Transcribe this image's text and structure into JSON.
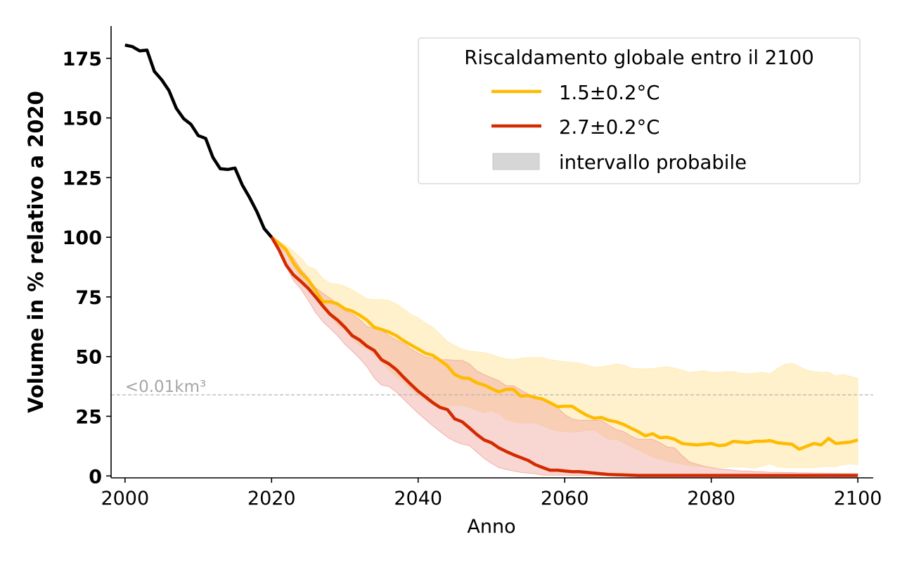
{
  "chart_data": {
    "type": "line",
    "title": "",
    "xlabel": "Anno",
    "ylabel": "Volume in % relativo a 2020",
    "xlim": [
      1998.1,
      2102.1
    ],
    "ylim": [
      -0.8,
      188.5
    ],
    "grid": false,
    "xticks": [
      2000,
      2020,
      2040,
      2060,
      2080,
      2100
    ],
    "xtick_labels": [
      "2000",
      "2020",
      "2040",
      "2060",
      "2080",
      "2100"
    ],
    "yticks": [
      0,
      25,
      50,
      75,
      100,
      125,
      150,
      175
    ],
    "ytick_labels": [
      "0",
      "25",
      "50",
      "75",
      "100",
      "125",
      "150",
      "175"
    ],
    "legend": {
      "title": "Riscaldamento globale entro il 2100",
      "placement": "top-right",
      "entries": [
        {
          "label": "1.5±0.2°C",
          "kind": "line",
          "color": "#ffbb00"
        },
        {
          "label": "2.7±0.2°C",
          "kind": "line",
          "color": "#d42a00"
        },
        {
          "label": "intervallo probabile",
          "kind": "patch",
          "color": "#d6d6d6"
        }
      ]
    },
    "annotations": [
      {
        "text": "<0.01km³",
        "kind": "hline",
        "y": 34.0,
        "color": "#a6a6a6",
        "style": "dashed"
      }
    ],
    "observed": {
      "name": "observed",
      "color": "#000000",
      "x": [
        2000,
        2001,
        2002,
        2003,
        2004,
        2005,
        2006,
        2007,
        2008,
        2009,
        2010,
        2011,
        2012,
        2013,
        2014,
        2015,
        2016,
        2017,
        2018,
        2019,
        2020
      ],
      "values": [
        180.5,
        179.9,
        178.1,
        178.4,
        169.5,
        166.0,
        161.5,
        154.0,
        149.7,
        147.3,
        142.6,
        141.4,
        133.4,
        128.7,
        128.4,
        129.0,
        121.9,
        116.6,
        110.7,
        103.6,
        100.0
      ]
    },
    "series": [
      {
        "name": "1.5±0.2°C",
        "color": "#ffbb00",
        "band_color": "#ffe9b0",
        "x_start": 2020,
        "values": [
          100,
          97.5,
          94.8,
          89.2,
          85.1,
          82.1,
          77.7,
          73.0,
          73.0,
          72.1,
          70.0,
          69.1,
          67.4,
          65.3,
          62.3,
          61.4,
          60.3,
          58.8,
          56.7,
          54.9,
          53.2,
          51.4,
          50.5,
          48.4,
          46.1,
          42.5,
          41.1,
          40.8,
          39.0,
          38.1,
          36.6,
          35.2,
          36.3,
          36.3,
          33.4,
          33.7,
          32.8,
          32.2,
          30.7,
          29.0,
          29.2,
          29.2,
          27.2,
          25.4,
          24.2,
          24.5,
          23.3,
          22.7,
          21.6,
          20.1,
          18.6,
          16.8,
          17.7,
          16.0,
          16.2,
          15.4,
          13.6,
          13.3,
          13.0,
          13.3,
          13.6,
          12.7,
          13.0,
          14.5,
          14.2,
          13.9,
          14.5,
          14.5,
          14.8,
          13.9,
          13.6,
          13.3,
          11.2,
          12.4,
          13.6,
          13.0,
          15.7,
          13.6,
          13.9,
          14.2,
          15.1
        ],
        "upper": [
          100,
          98.4,
          96.6,
          94.2,
          91.3,
          87.7,
          86.6,
          82.7,
          80.7,
          80.4,
          79.5,
          78.0,
          76.2,
          74.2,
          73.9,
          73.9,
          73.6,
          72.1,
          70.0,
          67.7,
          66.2,
          64.1,
          62.3,
          59.4,
          56.4,
          54.7,
          53.2,
          52.3,
          52.0,
          51.7,
          50.8,
          49.9,
          49.0,
          48.7,
          49.3,
          49.6,
          49.6,
          49.6,
          48.7,
          48.2,
          47.9,
          47.6,
          47.3,
          46.4,
          45.5,
          45.8,
          46.1,
          47.0,
          46.4,
          45.2,
          44.9,
          44.9,
          44.9,
          45.5,
          45.8,
          45.2,
          44.3,
          43.4,
          43.7,
          44.0,
          43.4,
          43.4,
          43.7,
          43.7,
          43.1,
          42.8,
          43.1,
          43.4,
          42.8,
          44.9,
          46.7,
          47.3,
          45.8,
          44.3,
          43.7,
          43.4,
          43.4,
          41.9,
          42.5,
          41.7,
          40.8
        ],
        "lower": [
          100,
          96.6,
          93.1,
          87.7,
          82.4,
          78.9,
          75.3,
          70.0,
          67.1,
          63.2,
          61.2,
          57.6,
          54.7,
          53.5,
          50.8,
          47.9,
          44.3,
          41.7,
          39.6,
          36.3,
          34.0,
          31.6,
          30.1,
          29.2,
          29.5,
          29.5,
          29.5,
          28.7,
          27.5,
          26.6,
          27.2,
          26.3,
          23.6,
          22.7,
          22.2,
          22.2,
          22.2,
          21.0,
          19.8,
          18.9,
          18.6,
          18.3,
          18.6,
          19.2,
          19.2,
          17.4,
          15.4,
          15.4,
          13.9,
          12.4,
          10.9,
          9.5,
          8.0,
          7.1,
          6.2,
          5.6,
          5.0,
          4.4,
          4.1,
          3.8,
          3.8,
          3.5,
          3.5,
          3.8,
          3.8,
          3.5,
          3.2,
          4.1,
          5.0,
          3.8,
          3.5,
          3.5,
          3.5,
          3.5,
          3.5,
          3.8,
          4.1,
          3.8,
          4.7,
          5.0,
          4.7
        ]
      },
      {
        "name": "2.7±0.2°C",
        "color": "#d42a00",
        "band_color": "#f0a59a",
        "x_start": 2020,
        "values": [
          100,
          94.8,
          88.3,
          84.2,
          81.5,
          78.6,
          75.0,
          71.2,
          67.7,
          65.3,
          62.3,
          58.8,
          57.0,
          54.4,
          52.6,
          48.7,
          47.0,
          44.6,
          41.4,
          38.4,
          35.5,
          33.1,
          30.7,
          28.7,
          27.8,
          23.9,
          22.7,
          20.1,
          17.4,
          15.1,
          13.9,
          11.8,
          10.3,
          8.9,
          7.7,
          6.5,
          4.7,
          3.5,
          2.4,
          2.4,
          2.1,
          1.8,
          1.8,
          1.5,
          1.2,
          0.9,
          0.6,
          0.5,
          0.4,
          0.3,
          0.2,
          0.2,
          0.2,
          0.2,
          0.2,
          0.2,
          0.2,
          0.2,
          0.2,
          0.2,
          0.2,
          0.2,
          0.2,
          0.2,
          0.2,
          0.2,
          0.2,
          0.2,
          0.2,
          0.2,
          0.2,
          0.2,
          0.2,
          0.2,
          0.2,
          0.2,
          0.2,
          0.2,
          0.2,
          0.2,
          0.2
        ],
        "upper": [
          100,
          97.2,
          94.2,
          91.3,
          86.6,
          83.0,
          78.9,
          76.5,
          74.4,
          72.1,
          69.4,
          67.9,
          65.6,
          62.6,
          61.7,
          61.2,
          58.8,
          57.0,
          55.5,
          53.2,
          51.4,
          49.9,
          49.3,
          48.7,
          48.7,
          48.4,
          48.4,
          47.0,
          44.0,
          42.5,
          41.1,
          39.9,
          37.8,
          37.8,
          36.0,
          34.3,
          32.8,
          31.6,
          30.1,
          28.7,
          25.7,
          23.9,
          23.3,
          23.3,
          23.3,
          23.3,
          21.3,
          19.5,
          18.6,
          16.8,
          15.4,
          15.4,
          15.4,
          13.9,
          12.1,
          11.8,
          8.6,
          5.9,
          5.0,
          4.1,
          3.5,
          3.0,
          2.7,
          2.4,
          2.1,
          2.1,
          1.8,
          1.8,
          1.5,
          1.5,
          1.4,
          1.4,
          1.3,
          1.3,
          1.2,
          1.2,
          1.1,
          1.1,
          1.0,
          1.0,
          1.0
        ],
        "lower": [
          100,
          94.2,
          87.7,
          81.8,
          78.3,
          73.6,
          68.5,
          64.7,
          61.7,
          58.8,
          55.2,
          52.3,
          49.3,
          45.8,
          41.1,
          38.1,
          37.5,
          35.2,
          32.2,
          29.2,
          26.3,
          23.6,
          21.0,
          18.6,
          16.2,
          14.5,
          13.3,
          12.7,
          10.0,
          7.4,
          5.3,
          3.5,
          2.7,
          2.1,
          1.5,
          1.2,
          0.9,
          0.3,
          0.3,
          0.3,
          0.3,
          0.2,
          0.2,
          0.2,
          0.2,
          0.1,
          0.1,
          0.1,
          0.1,
          0.1,
          0.1,
          0.1,
          0.1,
          0.1,
          0.1,
          0.1,
          0.1,
          0.1,
          0.1,
          0.1,
          0.0,
          0.0,
          0.0,
          0.0,
          0.0,
          0.0,
          0.0,
          0.0,
          0.0,
          0.0,
          0.0,
          0.0,
          0.0,
          0.0,
          0.0,
          0.0,
          0.0,
          0.0,
          0.0,
          0.0,
          0.0
        ]
      }
    ]
  }
}
